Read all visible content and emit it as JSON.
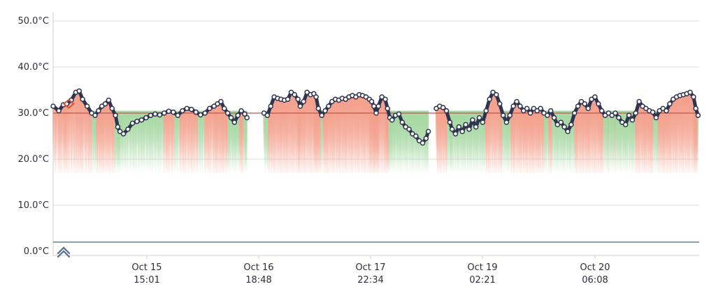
{
  "chart_data": {
    "type": "line",
    "title": "",
    "xlabel": "",
    "ylabel": "",
    "ylim": [
      0,
      50
    ],
    "y_ticks": [
      "0.0°C",
      "10.0°C",
      "20.0°C",
      "30.0°C",
      "40.0°C",
      "50.0°C"
    ],
    "y_tick_values": [
      0,
      10,
      20,
      30,
      40,
      50
    ],
    "x_ticks": [
      {
        "date": "Oct 15",
        "time": "15:01"
      },
      {
        "date": "Oct 16",
        "time": "18:48"
      },
      {
        "date": "Oct 17",
        "time": "22:34"
      },
      {
        "date": "Oct 19",
        "time": "02:21"
      },
      {
        "date": "Oct 20",
        "time": "06:08"
      }
    ],
    "threshold_line": 30,
    "baseline_line": 2,
    "grid": true,
    "legend": "none",
    "colors": {
      "series": "#2f3450",
      "threshold": "#c0564a",
      "baseline": "#5a6f8f",
      "above_fill": "#f3a08c",
      "below_fill": "#a7d8a3",
      "grid": "#dcdcdc",
      "first_point": "#d9533e"
    },
    "series": [
      {
        "segments": [
          [
            [
              0.0,
              31.5
            ],
            [
              0.25,
              30.5
            ],
            [
              0.45,
              31.8
            ],
            [
              0.6,
              32.0
            ],
            [
              0.8,
              32.8
            ],
            [
              1.0,
              34.5
            ],
            [
              1.15,
              34.8
            ],
            [
              1.3,
              33.0
            ],
            [
              1.5,
              31.5
            ],
            [
              1.7,
              30.0
            ],
            [
              1.85,
              29.5
            ],
            [
              2.0,
              30.5
            ],
            [
              2.15,
              31.5
            ],
            [
              2.3,
              32.0
            ],
            [
              2.45,
              32.8
            ],
            [
              2.6,
              31.0
            ],
            [
              2.75,
              29.5
            ],
            [
              2.85,
              27.0
            ],
            [
              2.95,
              26.0
            ],
            [
              3.1,
              25.5
            ],
            [
              3.3,
              26.5
            ],
            [
              3.5,
              27.8
            ],
            [
              3.7,
              28.2
            ],
            [
              3.9,
              28.5
            ],
            [
              4.1,
              29.0
            ],
            [
              4.3,
              29.5
            ],
            [
              4.5,
              29.8
            ],
            [
              4.7,
              29.6
            ],
            [
              4.9,
              30.0
            ],
            [
              5.1,
              30.4
            ],
            [
              5.3,
              30.2
            ],
            [
              5.5,
              29.5
            ],
            [
              5.7,
              30.5
            ],
            [
              5.9,
              31.0
            ],
            [
              6.1,
              30.8
            ],
            [
              6.3,
              30.2
            ],
            [
              6.5,
              29.6
            ],
            [
              6.7,
              30.0
            ],
            [
              6.9,
              31.0
            ],
            [
              7.1,
              31.5
            ],
            [
              7.25,
              32.0
            ],
            [
              7.4,
              32.5
            ],
            [
              7.55,
              31.0
            ],
            [
              7.7,
              30.0
            ],
            [
              7.85,
              29.0
            ],
            [
              8.0,
              28.0
            ],
            [
              8.15,
              29.5
            ],
            [
              8.3,
              30.5
            ],
            [
              8.45,
              29.8
            ],
            [
              8.55,
              29.0
            ]
          ],
          [
            [
              9.3,
              30.0
            ],
            [
              9.45,
              29.5
            ],
            [
              9.6,
              31.5
            ],
            [
              9.75,
              33.5
            ],
            [
              9.9,
              33.2
            ],
            [
              10.05,
              33.0
            ],
            [
              10.2,
              32.8
            ],
            [
              10.35,
              33.0
            ],
            [
              10.5,
              34.5
            ],
            [
              10.65,
              34.0
            ],
            [
              10.8,
              33.0
            ],
            [
              10.9,
              31.5
            ],
            [
              11.05,
              32.5
            ],
            [
              11.2,
              34.5
            ],
            [
              11.35,
              34.0
            ],
            [
              11.5,
              34.2
            ],
            [
              11.6,
              33.5
            ],
            [
              11.7,
              31.0
            ],
            [
              11.85,
              29.5
            ],
            [
              12.0,
              30.5
            ],
            [
              12.15,
              31.5
            ],
            [
              12.3,
              32.5
            ],
            [
              12.45,
              33.0
            ],
            [
              12.6,
              32.8
            ],
            [
              12.75,
              33.2
            ],
            [
              12.9,
              33.0
            ],
            [
              13.05,
              33.5
            ],
            [
              13.2,
              33.8
            ],
            [
              13.35,
              33.5
            ],
            [
              13.5,
              34.0
            ],
            [
              13.65,
              33.8
            ],
            [
              13.8,
              33.5
            ],
            [
              13.95,
              33.0
            ],
            [
              14.05,
              32.5
            ],
            [
              14.15,
              31.5
            ],
            [
              14.25,
              30.0
            ],
            [
              14.35,
              31.5
            ],
            [
              14.5,
              33.5
            ],
            [
              14.65,
              33.0
            ],
            [
              14.75,
              31.0
            ],
            [
              14.85,
              29.0
            ],
            [
              14.95,
              28.5
            ],
            [
              15.1,
              29.5
            ],
            [
              15.25,
              29.8
            ],
            [
              15.4,
              28.0
            ],
            [
              15.55,
              27.0
            ],
            [
              15.7,
              26.5
            ],
            [
              15.85,
              25.5
            ],
            [
              16.0,
              25.0
            ],
            [
              16.15,
              24.0
            ],
            [
              16.3,
              23.5
            ],
            [
              16.45,
              24.5
            ],
            [
              16.55,
              26.0
            ]
          ],
          [
            [
              16.9,
              31.0
            ],
            [
              17.05,
              31.5
            ],
            [
              17.2,
              31.2
            ],
            [
              17.35,
              30.5
            ],
            [
              17.5,
              28.0
            ],
            [
              17.6,
              26.5
            ],
            [
              17.75,
              25.5
            ],
            [
              17.9,
              27.0
            ],
            [
              18.05,
              26.0
            ],
            [
              18.2,
              27.5
            ],
            [
              18.35,
              26.5
            ],
            [
              18.5,
              28.5
            ],
            [
              18.65,
              27.0
            ],
            [
              18.8,
              29.0
            ],
            [
              18.95,
              28.0
            ],
            [
              19.1,
              30.5
            ],
            [
              19.25,
              33.0
            ],
            [
              19.4,
              34.5
            ],
            [
              19.55,
              34.0
            ],
            [
              19.7,
              32.0
            ],
            [
              19.85,
              29.5
            ],
            [
              20.0,
              28.0
            ],
            [
              20.15,
              29.5
            ],
            [
              20.3,
              31.5
            ],
            [
              20.45,
              32.5
            ],
            [
              20.6,
              31.5
            ],
            [
              20.75,
              30.5
            ],
            [
              20.9,
              31.0
            ],
            [
              21.05,
              30.0
            ],
            [
              21.2,
              31.0
            ],
            [
              21.35,
              30.5
            ],
            [
              21.5,
              31.0
            ],
            [
              21.65,
              30.0
            ],
            [
              21.8,
              29.5
            ],
            [
              21.95,
              30.5
            ],
            [
              22.1,
              29.0
            ],
            [
              22.25,
              27.5
            ],
            [
              22.4,
              28.0
            ],
            [
              22.55,
              27.0
            ],
            [
              22.7,
              26.0
            ],
            [
              22.85,
              27.5
            ],
            [
              23.0,
              30.0
            ],
            [
              23.15,
              31.5
            ],
            [
              23.3,
              32.5
            ],
            [
              23.45,
              32.0
            ],
            [
              23.6,
              31.0
            ],
            [
              23.75,
              33.0
            ],
            [
              23.9,
              33.5
            ],
            [
              24.05,
              32.0
            ],
            [
              24.2,
              30.5
            ],
            [
              24.35,
              29.5
            ],
            [
              24.5,
              30.0
            ],
            [
              24.65,
              29.5
            ],
            [
              24.8,
              30.0
            ],
            [
              24.95,
              29.0
            ],
            [
              25.1,
              28.0
            ],
            [
              25.25,
              27.5
            ],
            [
              25.4,
              29.5
            ],
            [
              25.55,
              28.5
            ],
            [
              25.7,
              30.0
            ],
            [
              25.85,
              32.5
            ],
            [
              26.0,
              31.5
            ],
            [
              26.15,
              31.0
            ],
            [
              26.3,
              30.5
            ],
            [
              26.45,
              30.2
            ],
            [
              26.6,
              29.0
            ],
            [
              26.75,
              30.5
            ],
            [
              26.9,
              31.0
            ],
            [
              27.05,
              30.5
            ],
            [
              27.2,
              32.0
            ],
            [
              27.35,
              33.0
            ],
            [
              27.5,
              33.5
            ],
            [
              27.65,
              33.8
            ],
            [
              27.8,
              34.0
            ],
            [
              27.95,
              34.2
            ],
            [
              28.1,
              34.5
            ],
            [
              28.25,
              33.5
            ],
            [
              28.35,
              31.0
            ],
            [
              28.45,
              29.5
            ]
          ]
        ]
      }
    ]
  }
}
